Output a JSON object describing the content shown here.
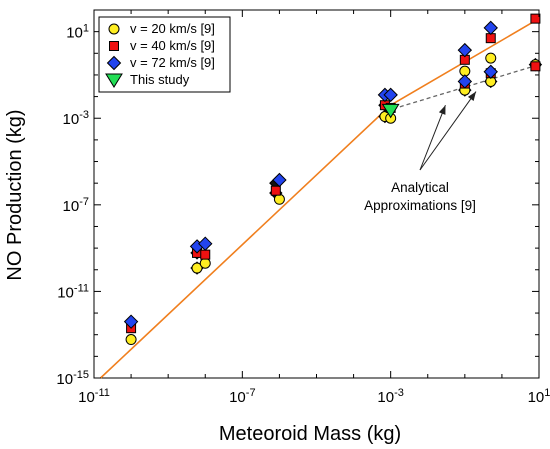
{
  "chart_data": {
    "type": "scatter",
    "xscale": "log",
    "yscale": "log",
    "xlim": [
      1e-11,
      10
    ],
    "ylim": [
      1e-15,
      100
    ],
    "xlabel": "Meteoroid Mass (kg)",
    "ylabel": "NO Production (kg)",
    "x_ticks": [
      {
        "base": "10",
        "exp": "-11",
        "value": 1e-11
      },
      {
        "base": "10",
        "exp": "-7",
        "value": 1e-07
      },
      {
        "base": "10",
        "exp": "-3",
        "value": 0.001
      },
      {
        "base": "10",
        "exp": "1",
        "value": 10
      }
    ],
    "y_ticks": [
      {
        "base": "10",
        "exp": "-15",
        "value": 1e-15
      },
      {
        "base": "10",
        "exp": "-11",
        "value": 1e-11
      },
      {
        "base": "10",
        "exp": "-7",
        "value": 1e-07
      },
      {
        "base": "10",
        "exp": "-3",
        "value": 0.001
      },
      {
        "base": "10",
        "exp": "1",
        "value": 10
      }
    ],
    "legend_position": "top-left",
    "series": [
      {
        "name": "v = 20 km/s [9]",
        "marker": "circle",
        "color": "#ffee22",
        "points": [
          [
            1e-10,
            6e-14
          ],
          [
            6e-09,
            1.2e-10
          ],
          [
            1e-08,
            2e-10
          ],
          [
            1e-06,
            1.8e-07
          ],
          [
            0.0007,
            0.0012
          ],
          [
            0.001,
            0.001
          ],
          [
            0.1,
            0.15
          ],
          [
            0.1,
            0.02
          ],
          [
            0.5,
            0.6
          ],
          [
            0.5,
            0.05
          ],
          [
            8,
            0.3
          ]
        ]
      },
      {
        "name": "v = 40 km/s [9]",
        "marker": "square",
        "color": "#ee1111",
        "points": [
          [
            1e-10,
            2e-13
          ],
          [
            6e-09,
            6e-10
          ],
          [
            1e-08,
            5e-10
          ],
          [
            8e-07,
            4.5e-07
          ],
          [
            0.0007,
            0.004
          ],
          [
            0.001,
            0.003
          ],
          [
            0.1,
            0.5
          ],
          [
            0.1,
            0.04
          ],
          [
            0.5,
            5
          ],
          [
            0.5,
            0.12
          ],
          [
            8,
            40
          ],
          [
            8,
            0.25
          ]
        ]
      },
      {
        "name": "v = 72 km/s [9]",
        "marker": "diamond",
        "color": "#2244ee",
        "points": [
          [
            1e-10,
            4e-13
          ],
          [
            6e-09,
            1.2e-09
          ],
          [
            1e-08,
            1.6e-09
          ],
          [
            1e-06,
            1.4e-06
          ],
          [
            0.0007,
            0.012
          ],
          [
            0.001,
            0.012
          ],
          [
            0.1,
            1.4
          ],
          [
            0.1,
            0.05
          ],
          [
            0.5,
            15
          ],
          [
            0.5,
            0.14
          ]
        ]
      },
      {
        "name": "This study",
        "marker": "triangle",
        "color": "#22dd55",
        "points": [
          [
            0.001,
            0.0023
          ]
        ]
      }
    ],
    "black_markers": [
      [
        6e-09,
        1.2e-10
      ],
      [
        6e-09,
        6e-10
      ],
      [
        6e-09,
        1.2e-09
      ],
      [
        8e-07,
        3.5e-07
      ],
      [
        8e-07,
        1e-06
      ],
      [
        0.0007,
        0.0012
      ],
      [
        0.0007,
        0.004
      ],
      [
        0.0007,
        0.012
      ],
      [
        0.1,
        0.02
      ],
      [
        0.1,
        0.05
      ],
      [
        0.5,
        0.05
      ],
      [
        0.5,
        0.14
      ],
      [
        8,
        0.3
      ]
    ],
    "lines": [
      {
        "style": "solid",
        "color": "#f07f1e",
        "points": [
          [
            1.5e-11,
            1e-15
          ],
          [
            0.001,
            0.004
          ],
          [
            10,
            40
          ]
        ]
      },
      {
        "style": "dashed",
        "color": "#666666",
        "points": [
          [
            0.001,
            0.004
          ],
          [
            0.001,
            0.0025
          ],
          [
            10,
            0.3
          ]
        ]
      }
    ],
    "annotation": {
      "lines": [
        "Analytical",
        "Approximations [9]"
      ],
      "arrow_targets": [
        [
          0.03,
          0.004
        ],
        [
          0.2,
          0.017
        ]
      ]
    }
  }
}
